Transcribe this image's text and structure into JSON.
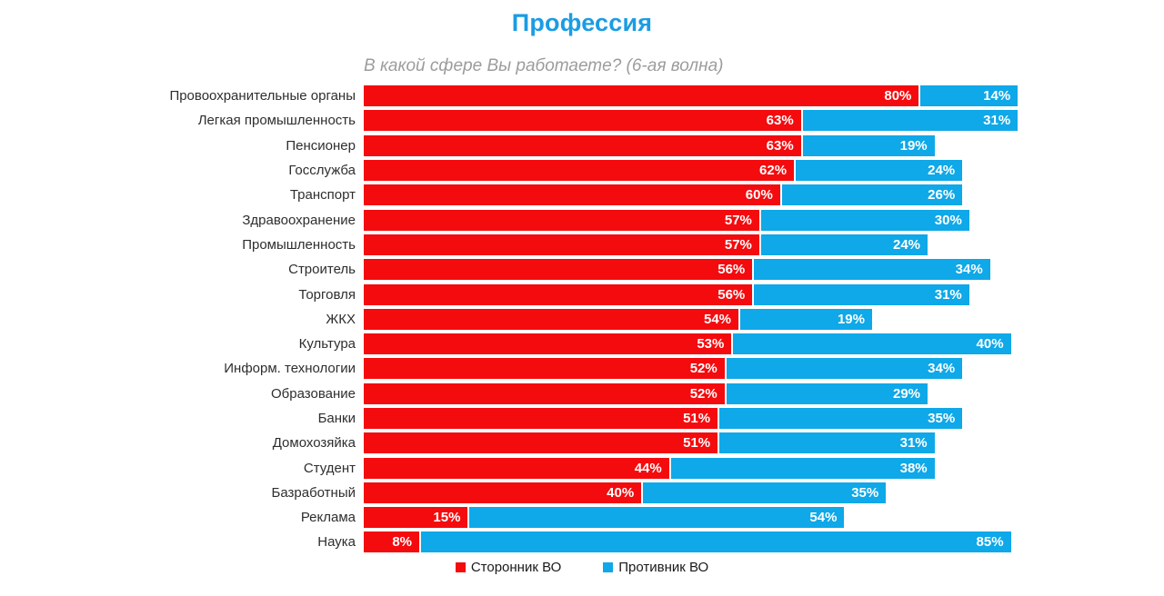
{
  "title": "Профессия",
  "subtitle": "В какой сфере Вы работаете? (6-ая волна)",
  "colors": {
    "supporter_red": "#F40B0E",
    "opponent_blue": "#0FA8E8",
    "title_blue": "#1B9CE3",
    "subtitle_gray": "#9C9C9C"
  },
  "legend": {
    "supporter_label": "Сторонник ВО",
    "opponent_label": "Противник ВО"
  },
  "chart_data": {
    "type": "bar",
    "orientation": "horizontal",
    "stacked": true,
    "title": "Профессия",
    "subtitle": "В какой сфере Вы работаете? (6-ая волна)",
    "value_suffix": "%",
    "xlim": [
      0,
      94
    ],
    "grid": false,
    "legend_position": "bottom",
    "categories": [
      "Провоохранительные органы",
      "Легкая промышленность",
      "Пенсионер",
      "Госслужба",
      "Транспорт",
      "Здравоохранение",
      "Промышленность",
      "Строитель",
      "Торговля",
      "ЖКХ",
      "Культура",
      "Информ. технологии",
      "Образование",
      "Банки",
      "Домохозяйка",
      "Студент",
      "Базработный",
      "Реклама",
      "Наука"
    ],
    "series": [
      {
        "name": "Сторонник ВО",
        "color": "#F40B0E",
        "values": [
          80,
          63,
          63,
          62,
          60,
          57,
          57,
          56,
          56,
          54,
          53,
          52,
          52,
          51,
          51,
          44,
          40,
          15,
          8
        ]
      },
      {
        "name": "Противник ВО",
        "color": "#0FA8E8",
        "values": [
          14,
          31,
          19,
          24,
          26,
          30,
          24,
          34,
          31,
          19,
          40,
          34,
          29,
          35,
          31,
          38,
          35,
          54,
          85
        ]
      }
    ]
  }
}
